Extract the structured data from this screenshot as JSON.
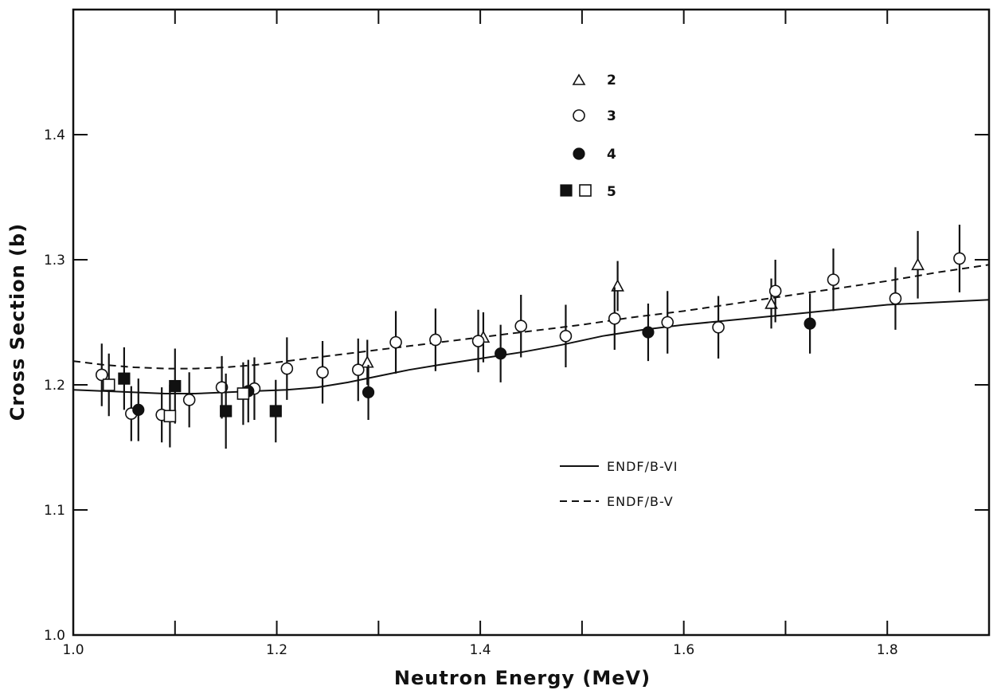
{
  "chart_data": {
    "type": "scatter",
    "title": "",
    "xlabel": "Neutron Energy (MeV)",
    "ylabel": "Cross Section (b)",
    "xlim": [
      1.0,
      1.9
    ],
    "ylim": [
      1.0,
      1.5
    ],
    "x_ticks": [
      1.0,
      1.2,
      1.4,
      1.6,
      1.8
    ],
    "x_tick_labels": [
      "1.0",
      "1.2",
      "1.4",
      "1.6",
      "1.8"
    ],
    "y_ticks": [
      1.0,
      1.1,
      1.2,
      1.3,
      1.4
    ],
    "y_tick_labels": [
      "1.0",
      "1.1",
      "1.2",
      "1.3",
      "1.4"
    ],
    "grid": false,
    "legend_position": "top-center",
    "series": [
      {
        "name": "2",
        "marker": "open-triangle",
        "points": [
          {
            "x": 1.289,
            "y": 1.218,
            "err": 0.018
          },
          {
            "x": 1.403,
            "y": 1.238,
            "err": 0.02
          },
          {
            "x": 1.535,
            "y": 1.279,
            "err": 0.02
          },
          {
            "x": 1.686,
            "y": 1.265,
            "err": 0.02
          },
          {
            "x": 1.83,
            "y": 1.296,
            "err": 0.027
          }
        ]
      },
      {
        "name": "3",
        "marker": "open-circle",
        "points": [
          {
            "x": 1.028,
            "y": 1.208,
            "err": 0.025
          },
          {
            "x": 1.057,
            "y": 1.177,
            "err": 0.022
          },
          {
            "x": 1.087,
            "y": 1.176,
            "err": 0.022
          },
          {
            "x": 1.114,
            "y": 1.188,
            "err": 0.022
          },
          {
            "x": 1.146,
            "y": 1.198,
            "err": 0.025
          },
          {
            "x": 1.178,
            "y": 1.197,
            "err": 0.025
          },
          {
            "x": 1.21,
            "y": 1.213,
            "err": 0.025
          },
          {
            "x": 1.245,
            "y": 1.21,
            "err": 0.025
          },
          {
            "x": 1.28,
            "y": 1.212,
            "err": 0.025
          },
          {
            "x": 1.317,
            "y": 1.234,
            "err": 0.025
          },
          {
            "x": 1.356,
            "y": 1.236,
            "err": 0.025
          },
          {
            "x": 1.398,
            "y": 1.235,
            "err": 0.025
          },
          {
            "x": 1.44,
            "y": 1.247,
            "err": 0.025
          },
          {
            "x": 1.484,
            "y": 1.239,
            "err": 0.025
          },
          {
            "x": 1.532,
            "y": 1.253,
            "err": 0.025
          },
          {
            "x": 1.584,
            "y": 1.25,
            "err": 0.025
          },
          {
            "x": 1.634,
            "y": 1.246,
            "err": 0.025
          },
          {
            "x": 1.69,
            "y": 1.275,
            "err": 0.025
          },
          {
            "x": 1.747,
            "y": 1.284,
            "err": 0.025
          },
          {
            "x": 1.808,
            "y": 1.269,
            "err": 0.025
          },
          {
            "x": 1.871,
            "y": 1.301,
            "err": 0.027
          }
        ]
      },
      {
        "name": "4",
        "marker": "filled-circle",
        "points": [
          {
            "x": 1.064,
            "y": 1.18,
            "err": 0.025
          },
          {
            "x": 1.172,
            "y": 1.195,
            "err": 0.025
          },
          {
            "x": 1.29,
            "y": 1.194,
            "err": 0.022
          },
          {
            "x": 1.42,
            "y": 1.225,
            "err": 0.023
          },
          {
            "x": 1.565,
            "y": 1.242,
            "err": 0.023
          },
          {
            "x": 1.724,
            "y": 1.249,
            "err": 0.024
          }
        ]
      },
      {
        "name": "5",
        "marker": "filled-square",
        "points": [
          {
            "x": 1.05,
            "y": 1.205,
            "err": 0.025
          },
          {
            "x": 1.1,
            "y": 1.199,
            "err": 0.03
          },
          {
            "x": 1.15,
            "y": 1.179,
            "err": 0.03
          },
          {
            "x": 1.199,
            "y": 1.179,
            "err": 0.025
          }
        ]
      },
      {
        "name": "5",
        "marker": "open-square",
        "points": [
          {
            "x": 1.035,
            "y": 1.2,
            "err": 0.025
          },
          {
            "x": 1.095,
            "y": 1.175,
            "err": 0.025
          },
          {
            "x": 1.167,
            "y": 1.193,
            "err": 0.025
          }
        ]
      }
    ],
    "curves": [
      {
        "name": "ENDF/B-VI",
        "style": "solid",
        "points": [
          [
            1.0,
            1.196
          ],
          [
            1.03,
            1.195
          ],
          [
            1.06,
            1.194
          ],
          [
            1.09,
            1.193
          ],
          [
            1.12,
            1.193
          ],
          [
            1.15,
            1.194
          ],
          [
            1.18,
            1.195
          ],
          [
            1.21,
            1.196
          ],
          [
            1.24,
            1.198
          ],
          [
            1.27,
            1.202
          ],
          [
            1.3,
            1.207
          ],
          [
            1.33,
            1.212
          ],
          [
            1.36,
            1.216
          ],
          [
            1.4,
            1.221
          ],
          [
            1.44,
            1.226
          ],
          [
            1.48,
            1.232
          ],
          [
            1.52,
            1.239
          ],
          [
            1.56,
            1.244
          ],
          [
            1.6,
            1.248
          ],
          [
            1.65,
            1.252
          ],
          [
            1.7,
            1.256
          ],
          [
            1.75,
            1.26
          ],
          [
            1.8,
            1.264
          ],
          [
            1.85,
            1.266
          ],
          [
            1.9,
            1.268
          ]
        ]
      },
      {
        "name": "ENDF/B-V",
        "style": "dashed",
        "points": [
          [
            1.0,
            1.219
          ],
          [
            1.03,
            1.216
          ],
          [
            1.06,
            1.214
          ],
          [
            1.09,
            1.213
          ],
          [
            1.12,
            1.213
          ],
          [
            1.15,
            1.214
          ],
          [
            1.18,
            1.216
          ],
          [
            1.21,
            1.219
          ],
          [
            1.25,
            1.223
          ],
          [
            1.3,
            1.228
          ],
          [
            1.35,
            1.233
          ],
          [
            1.4,
            1.238
          ],
          [
            1.45,
            1.243
          ],
          [
            1.5,
            1.248
          ],
          [
            1.55,
            1.254
          ],
          [
            1.6,
            1.259
          ],
          [
            1.65,
            1.265
          ],
          [
            1.7,
            1.271
          ],
          [
            1.75,
            1.277
          ],
          [
            1.8,
            1.283
          ],
          [
            1.85,
            1.29
          ],
          [
            1.9,
            1.296
          ]
        ]
      }
    ],
    "legend": {
      "marker_entries": [
        "2",
        "3",
        "4",
        "5"
      ],
      "line_entries": [
        "ENDF/B-VI",
        "ENDF/B-V"
      ]
    }
  }
}
